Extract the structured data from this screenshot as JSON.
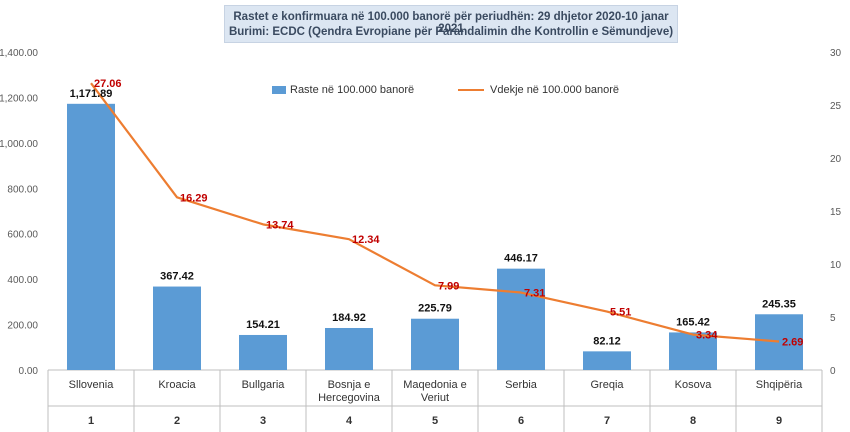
{
  "chart_data": {
    "type": "bar",
    "title": "Rastet e konfirmuara në 100.000 banorë për periudhën: 29 dhjetor 2020-10 janar 2021",
    "subtitle": "Burimi: ECDC (Qendra Evropiane për Parandalimin dhe Kontrollin e Sëmundjeve)",
    "categories": [
      "Sllovenia",
      "Kroacia",
      "Bullgaria",
      "Bosnja e Hercegovina",
      "Maqedonia e Veriut",
      "Serbia",
      "Greqia",
      "Kosova",
      "Shqipëria"
    ],
    "category_lines": [
      [
        "Sllovenia"
      ],
      [
        "Kroacia"
      ],
      [
        "Bullgaria"
      ],
      [
        "Bosnja e",
        "Hercegovina"
      ],
      [
        "Maqedonia e",
        "Veriut"
      ],
      [
        "Serbia"
      ],
      [
        "Greqia"
      ],
      [
        "Kosova"
      ],
      [
        "Shqipëria"
      ]
    ],
    "ranks": [
      "1",
      "2",
      "3",
      "4",
      "5",
      "6",
      "7",
      "8",
      "9"
    ],
    "series": [
      {
        "name": "Raste në 100.000 banorë",
        "type": "bar",
        "axis": "left",
        "color": "#5b9bd5",
        "values": [
          1171.89,
          367.42,
          154.21,
          184.92,
          225.79,
          446.17,
          82.12,
          165.42,
          245.35
        ],
        "labels": [
          "1,171.89",
          "367.42",
          "154.21",
          "184.92",
          "225.79",
          "446.17",
          "82.12",
          "165.42",
          "245.35"
        ]
      },
      {
        "name": "Vdekje në 100.000 banorë",
        "type": "line",
        "axis": "right",
        "color": "#ed7d31",
        "label_color": "#c00000",
        "values": [
          27.06,
          16.29,
          13.74,
          12.34,
          7.99,
          7.31,
          5.51,
          3.34,
          2.69
        ],
        "labels": [
          "27.06",
          "16.29",
          "13.74",
          "12.34",
          "7.99",
          "7.31",
          "5.51",
          "3.34",
          "2.69"
        ]
      }
    ],
    "y_left": {
      "ylim": [
        0,
        1400
      ],
      "ticks": [
        0,
        200,
        400,
        600,
        800,
        1000,
        1200,
        1400
      ],
      "tick_labels": [
        "0.00",
        "200.00",
        "400.00",
        "600.00",
        "800.00",
        "1,000.00",
        "1,200.00",
        "1,400.00"
      ]
    },
    "y_right": {
      "ylim": [
        0,
        30
      ],
      "ticks": [
        0,
        5,
        10,
        15,
        20,
        25,
        30
      ],
      "tick_labels": [
        "0",
        "5",
        "10",
        "15",
        "20",
        "25",
        "30"
      ]
    },
    "grid": false,
    "legend_position": "top"
  }
}
